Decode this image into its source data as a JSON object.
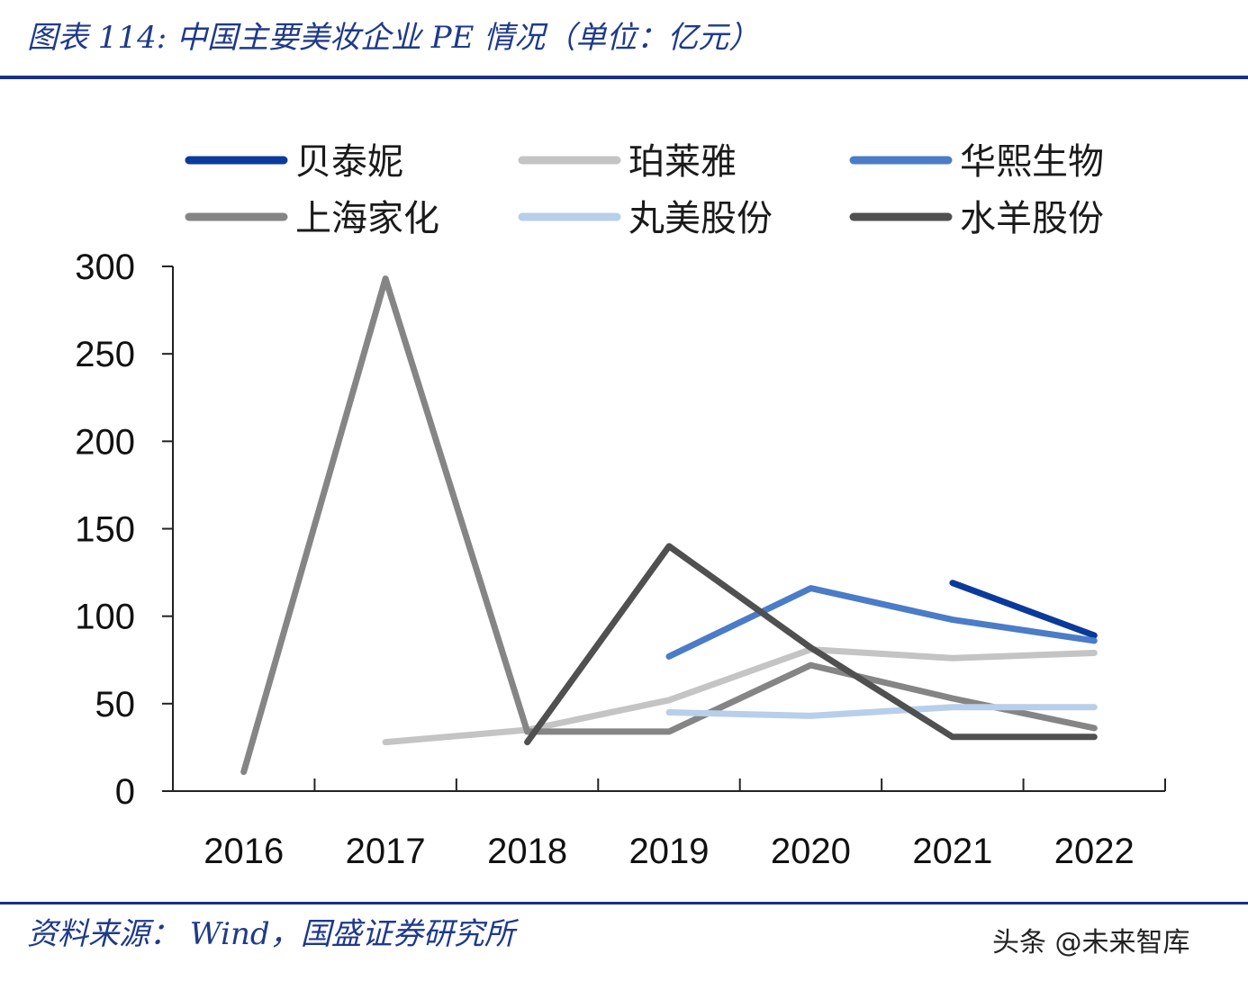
{
  "header": {
    "title": "图表 114:  中国主要美妆企业 PE 情况（单位：亿元）"
  },
  "footer": {
    "source": "资料来源：  Wind，国盛证券研究所",
    "watermark": "头条 @未来智库"
  },
  "chart_data": {
    "type": "line",
    "title": "",
    "xlabel": "",
    "ylabel": "",
    "categories": [
      "2016",
      "2017",
      "2018",
      "2019",
      "2020",
      "2021",
      "2022"
    ],
    "ylim": [
      0,
      300
    ],
    "yticks": [
      0,
      50,
      100,
      150,
      200,
      250,
      300
    ],
    "grid": false,
    "legend_position": "top",
    "series": [
      {
        "name": "贝泰妮",
        "color": "#0a3a9c",
        "values": [
          null,
          null,
          null,
          null,
          null,
          119,
          89
        ]
      },
      {
        "name": "珀莱雅",
        "color": "#c4c4c4",
        "values": [
          null,
          28,
          35,
          52,
          81,
          76,
          79
        ]
      },
      {
        "name": "华熙生物",
        "color": "#4a7cc8",
        "values": [
          null,
          null,
          null,
          77,
          116,
          98,
          86
        ]
      },
      {
        "name": "上海家化",
        "color": "#858585",
        "values": [
          11,
          293,
          34,
          34,
          72,
          53,
          36
        ]
      },
      {
        "name": "丸美股份",
        "color": "#b8cfea",
        "values": [
          null,
          null,
          null,
          45,
          43,
          48,
          48
        ]
      },
      {
        "name": "水羊股份",
        "color": "#505050",
        "values": [
          null,
          null,
          28,
          140,
          82,
          31,
          31
        ]
      }
    ]
  }
}
